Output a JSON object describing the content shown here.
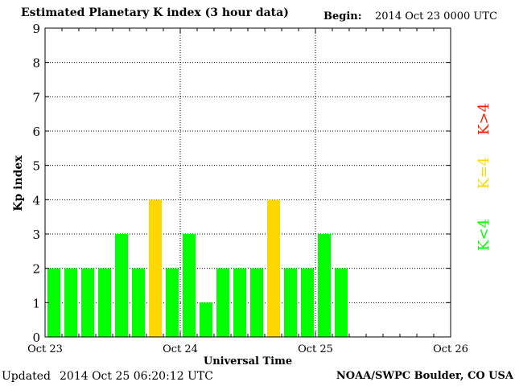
{
  "header": {
    "title": "Estimated Planetary K index (3 hour data)",
    "begin_label": "Begin:",
    "begin_value": "2014 Oct 23 0000 UTC"
  },
  "footer": {
    "updated_label": "Updated",
    "updated_value": "2014 Oct 25 06:20:12 UTC",
    "credit": "NOAA/SWPC Boulder, CO USA"
  },
  "legend": [
    {
      "label": "K<4",
      "color": "#00ff00"
    },
    {
      "label": "K=4",
      "color": "#ffd700"
    },
    {
      "label": "K>4",
      "color": "#ff2000"
    }
  ],
  "chart_data": {
    "type": "bar",
    "ylabel": "Kp index",
    "xlabel": "Universal Time",
    "ylim": [
      0,
      9
    ],
    "yticks": [
      0,
      1,
      2,
      3,
      4,
      5,
      6,
      7,
      8,
      9
    ],
    "x_tick_labels": [
      "Oct 23",
      "Oct 24",
      "Oct 25",
      "Oct 26"
    ],
    "bins_per_day": 8,
    "grid": true,
    "values": [
      2,
      2,
      2,
      2,
      3,
      2,
      4,
      2,
      3,
      1,
      2,
      2,
      2,
      4,
      2,
      2,
      3,
      2
    ],
    "colors": {
      "below4": "#00ff00",
      "eq4": "#ffd700",
      "above4": "#ff2000"
    }
  }
}
